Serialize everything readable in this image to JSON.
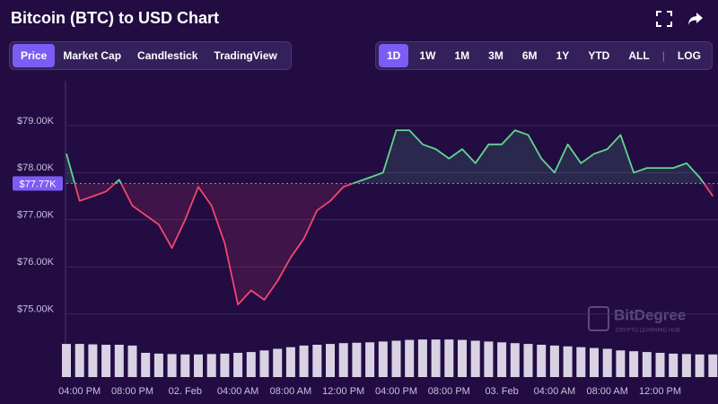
{
  "header": {
    "title": "Bitcoin (BTC) to USD Chart",
    "tabs": [
      "Price",
      "Market Cap",
      "Candlestick",
      "TradingView"
    ],
    "active_tab": 0,
    "ranges": [
      "1D",
      "1W",
      "1M",
      "3M",
      "6M",
      "1Y",
      "YTD",
      "ALL"
    ],
    "active_range": 0,
    "log_button": "LOG"
  },
  "chart_data": {
    "type": "line",
    "categories": [
      null,
      "04:00 PM",
      null,
      null,
      null,
      "08:00 PM",
      null,
      null,
      null,
      "02. Feb",
      null,
      null,
      null,
      "04:00 AM",
      null,
      null,
      null,
      "08:00 AM",
      null,
      null,
      null,
      "12:00 PM",
      null,
      null,
      null,
      "04:00 PM",
      null,
      null,
      null,
      "08:00 PM",
      null,
      null,
      null,
      "03. Feb",
      null,
      null,
      null,
      "04:00 AM",
      null,
      null,
      null,
      "08:00 AM",
      null,
      null,
      null,
      "12:00 PM",
      null,
      null,
      null,
      null
    ],
    "values": [
      78400,
      77400,
      77500,
      77600,
      77850,
      77300,
      77100,
      76900,
      76400,
      77000,
      77700,
      77300,
      76500,
      75200,
      75500,
      75300,
      75700,
      76200,
      76600,
      77200,
      77400,
      77700,
      77800,
      77900,
      78000,
      78900,
      78900,
      78600,
      78500,
      78300,
      78500,
      78200,
      78600,
      78600,
      78900,
      78800,
      78300,
      78000,
      78600,
      78200,
      78400,
      78500,
      78800,
      78000,
      78100,
      78100,
      78100,
      78200,
      77900,
      77500
    ],
    "colors": {
      "above": "#5fd68f",
      "below": "#f2476e"
    },
    "ylim": [
      74500,
      79950
    ],
    "yticks": [
      {
        "value": 75000,
        "label": "$75.00K"
      },
      {
        "value": 76000,
        "label": "$76.00K"
      },
      {
        "value": 77000,
        "label": "$77.00K"
      },
      {
        "value": 78000,
        "label": "$78.00K"
      },
      {
        "value": 79000,
        "label": "$79.00K"
      }
    ],
    "current_price": {
      "value": 77770,
      "label": "$77.77K"
    },
    "grid": true,
    "volume": {
      "values": [
        82,
        82,
        81,
        80,
        80,
        78,
        60,
        58,
        57,
        56,
        56,
        57,
        58,
        60,
        62,
        66,
        70,
        74,
        78,
        80,
        82,
        84,
        85,
        86,
        88,
        90,
        92,
        93,
        93,
        93,
        92,
        90,
        88,
        86,
        84,
        82,
        80,
        78,
        76,
        74,
        72,
        70,
        66,
        64,
        62,
        60,
        58,
        57,
        56,
        56
      ],
      "range": [
        0,
        100
      ],
      "color": "#d8d2e4"
    }
  },
  "watermark": {
    "name": "BitDegree",
    "tagline": "CRYPTO LEARNING HUB"
  }
}
